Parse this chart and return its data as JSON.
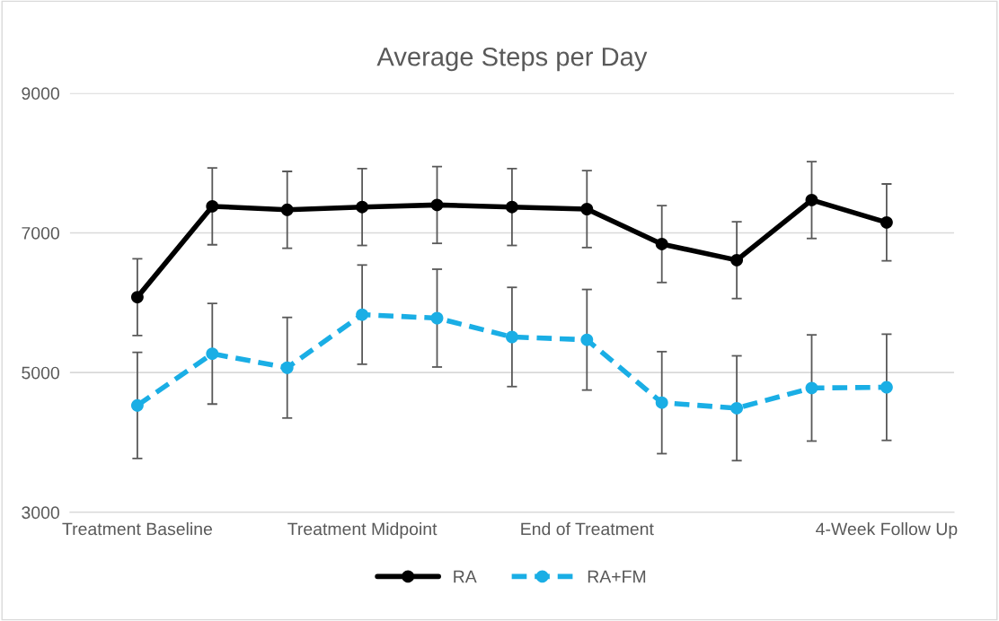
{
  "chart_data": {
    "type": "line",
    "title": "Average Steps per Day",
    "categories": [
      "Treatment Baseline",
      null,
      null,
      "Treatment Midpoint",
      null,
      null,
      "End of Treatment",
      null,
      null,
      null,
      "4-Week Follow Up"
    ],
    "series": [
      {
        "name": "RA",
        "color": "#000000",
        "line_style": "solid",
        "values": [
          6080,
          7380,
          7330,
          7370,
          7400,
          7370,
          7340,
          6840,
          6610,
          7470,
          7150
        ],
        "errors": [
          550,
          550,
          550,
          550,
          550,
          550,
          550,
          550,
          550,
          550,
          550
        ]
      },
      {
        "name": "RA+FM",
        "color": "#1aaee5",
        "line_style": "dashed",
        "values": [
          4530,
          5270,
          5070,
          5830,
          5780,
          5510,
          5470,
          4570,
          4490,
          4780,
          4790
        ],
        "errors": [
          760,
          720,
          720,
          710,
          700,
          710,
          720,
          730,
          750,
          760,
          760
        ]
      }
    ],
    "ylim": [
      3000,
      9000
    ],
    "yticks": [
      3000,
      5000,
      7000,
      9000
    ],
    "grid": "y",
    "legend": "bottom",
    "marker": "circle"
  }
}
